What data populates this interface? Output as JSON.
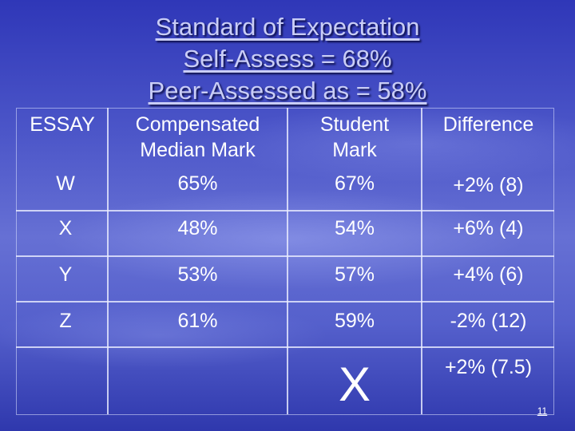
{
  "title": {
    "line1": "Standard of Expectation",
    "line2": "Self-Assess = 68%",
    "line3": "Peer-Assessed as = 58%"
  },
  "table": {
    "headers": {
      "essay": "ESSAY",
      "median_line1": "Compensated",
      "median_line2": "Median Mark",
      "student_line1": "Student",
      "student_line2": "Mark",
      "difference": "Difference"
    },
    "rows": [
      {
        "essay": "W",
        "median": "65%",
        "student": "67%",
        "difference": "+2% (8)"
      },
      {
        "essay": "X",
        "median": "48%",
        "student": "54%",
        "difference": "+6% (4)"
      },
      {
        "essay": "Y",
        "median": "53%",
        "student": "57%",
        "difference": "+4% (6)"
      },
      {
        "essay": "Z",
        "median": "61%",
        "student": "59%",
        "difference": "-2% (12)"
      }
    ],
    "summary": {
      "student": "X",
      "difference": "+2% (7.5)"
    }
  },
  "page_number": "11"
}
